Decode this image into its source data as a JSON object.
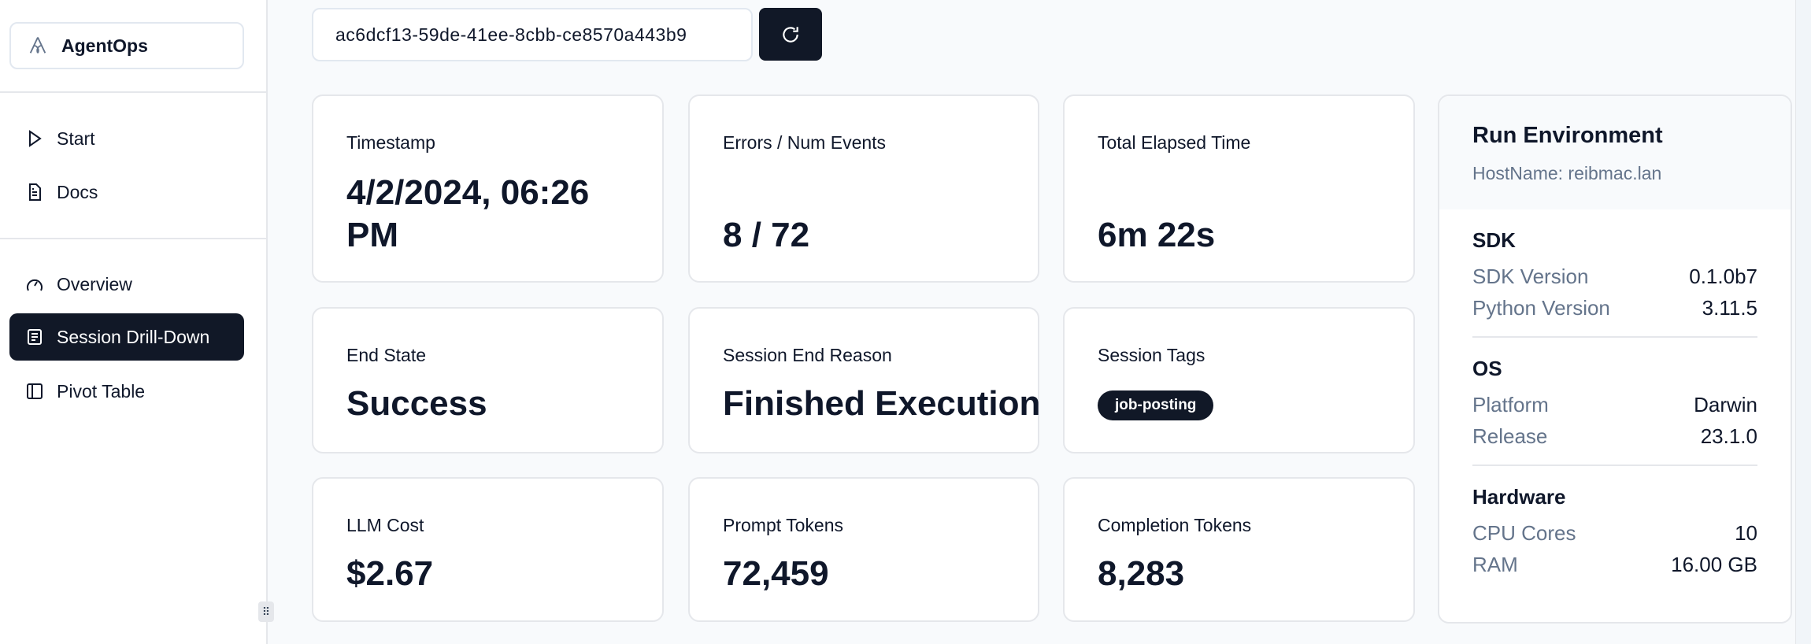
{
  "sidebar": {
    "logo": "AgentOps",
    "items": [
      {
        "label": "Start",
        "icon": "play-icon"
      },
      {
        "label": "Docs",
        "icon": "document-icon"
      },
      {
        "label": "Overview",
        "icon": "gauge-icon"
      },
      {
        "label": "Session Drill-Down",
        "icon": "list-icon",
        "active": true
      },
      {
        "label": "Pivot Table",
        "icon": "table-icon"
      }
    ]
  },
  "session": {
    "id": "ac6dcf13-59de-41ee-8cbb-ce8570a443b9"
  },
  "cards": {
    "timestamp": {
      "label": "Timestamp",
      "value": "4/2/2024, 06:26 PM"
    },
    "errors": {
      "label": "Errors / Num Events",
      "value": "8 / 72"
    },
    "elapsed": {
      "label": "Total Elapsed Time",
      "value": "6m 22s"
    },
    "end_state": {
      "label": "End State",
      "value": "Success"
    },
    "end_reason": {
      "label": "Session End Reason",
      "value": "Finished Execution"
    },
    "tags": {
      "label": "Session Tags",
      "value": "job-posting"
    },
    "cost": {
      "label": "LLM Cost",
      "value": "$2.67"
    },
    "prompt": {
      "label": "Prompt Tokens",
      "value": "72,459"
    },
    "completion": {
      "label": "Completion Tokens",
      "value": "8,283"
    }
  },
  "env": {
    "title": "Run Environment",
    "host": "HostName: reibmac.lan",
    "sdk": {
      "title": "SDK",
      "rows": [
        {
          "k": "SDK Version",
          "v": "0.1.0b7"
        },
        {
          "k": "Python Version",
          "v": "3.11.5"
        }
      ]
    },
    "os": {
      "title": "OS",
      "rows": [
        {
          "k": "Platform",
          "v": "Darwin"
        },
        {
          "k": "Release",
          "v": "23.1.0"
        }
      ]
    },
    "hardware": {
      "title": "Hardware",
      "rows": [
        {
          "k": "CPU Cores",
          "v": "10"
        },
        {
          "k": "RAM",
          "v": "16.00 GB"
        }
      ]
    }
  },
  "colors": {
    "primary": "#111827",
    "muted": "#64748b",
    "border": "#e5e7eb"
  }
}
